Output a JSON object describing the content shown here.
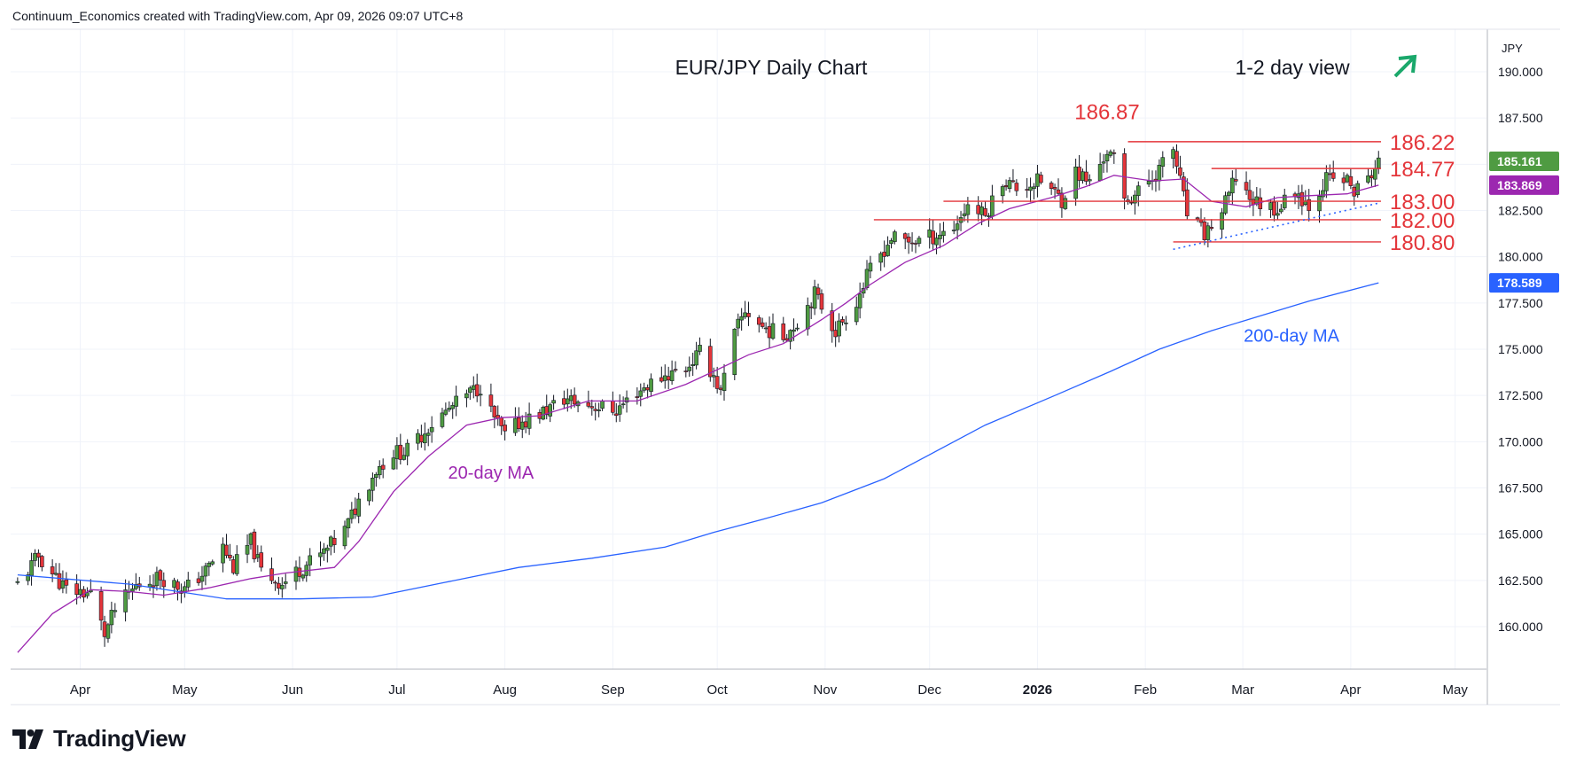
{
  "header": {
    "attribution": "Continuum_Economics created with TradingView.com, Apr 09, 2026 09:07 UTC+8"
  },
  "footer": {
    "brand": "TradingView",
    "logo_icon": "tradingview-logo-icon"
  },
  "colors": {
    "up": "#4f9b42",
    "down": "#e4353a",
    "ma20": "#9c27b0",
    "ma200": "#2962ff",
    "level": "#e4353a",
    "arrow": "#1aa86b",
    "last_price": "#4f9b42",
    "trend": "#2962ff"
  },
  "chart_data": {
    "type": "candlestick",
    "title": "EUR/JPY Daily Chart",
    "view_label": "1-2 day view",
    "view_icon": "arrow-up-right-icon",
    "currency": "JPY",
    "ylim": [
      157.7,
      192.3
    ],
    "yticks": [
      "160.000",
      "162.500",
      "165.000",
      "167.500",
      "170.000",
      "172.500",
      "175.000",
      "177.500",
      "180.000",
      "182.500",
      "185.000",
      "187.500",
      "190.000"
    ],
    "xticks": [
      {
        "label": "Apr",
        "date": "2025-04-01"
      },
      {
        "label": "May",
        "date": "2025-05-01"
      },
      {
        "label": "Jun",
        "date": "2025-06-01"
      },
      {
        "label": "Jul",
        "date": "2025-07-01"
      },
      {
        "label": "Aug",
        "date": "2025-08-01"
      },
      {
        "label": "Sep",
        "date": "2025-09-01"
      },
      {
        "label": "Oct",
        "date": "2025-10-01"
      },
      {
        "label": "Nov",
        "date": "2025-11-01"
      },
      {
        "label": "Dec",
        "date": "2025-12-01"
      },
      {
        "label": "2026",
        "date": "2026-01-01"
      },
      {
        "label": "Feb",
        "date": "2026-02-01"
      },
      {
        "label": "Mar",
        "date": "2026-03-01"
      },
      {
        "label": "Apr",
        "date": "2026-04-01"
      },
      {
        "label": "May",
        "date": "2026-05-01"
      }
    ],
    "first_date": "2025-03-14",
    "last_date": "2026-04-09",
    "axis_end_date": "2026-05-10",
    "price_path": [
      [
        "2025-03-14",
        162.3
      ],
      [
        "2025-03-20",
        163.8
      ],
      [
        "2025-03-28",
        162.0
      ],
      [
        "2025-04-04",
        161.8
      ],
      [
        "2025-04-08",
        159.6
      ],
      [
        "2025-04-11",
        160.9
      ],
      [
        "2025-04-17",
        162.2
      ],
      [
        "2025-04-24",
        162.7
      ],
      [
        "2025-05-01",
        162.0
      ],
      [
        "2025-05-07",
        163.0
      ],
      [
        "2025-05-12",
        164.3
      ],
      [
        "2025-05-15",
        163.2
      ],
      [
        "2025-05-20",
        164.6
      ],
      [
        "2025-05-23",
        163.0
      ],
      [
        "2025-05-29",
        162.3
      ],
      [
        "2025-06-03",
        163.1
      ],
      [
        "2025-06-10",
        164.0
      ],
      [
        "2025-06-16",
        165.2
      ],
      [
        "2025-06-20",
        166.8
      ],
      [
        "2025-06-25",
        168.5
      ],
      [
        "2025-06-30",
        169.4
      ],
      [
        "2025-07-04",
        169.5
      ],
      [
        "2025-07-10",
        170.8
      ],
      [
        "2025-07-15",
        171.6
      ],
      [
        "2025-07-21",
        172.5
      ],
      [
        "2025-07-25",
        173.0
      ],
      [
        "2025-07-28",
        171.6
      ],
      [
        "2025-08-01",
        170.3
      ],
      [
        "2025-08-05",
        171.0
      ],
      [
        "2025-08-12",
        171.6
      ],
      [
        "2025-08-18",
        172.3
      ],
      [
        "2025-08-25",
        172.0
      ],
      [
        "2025-09-02",
        171.7
      ],
      [
        "2025-09-08",
        172.7
      ],
      [
        "2025-09-15",
        173.5
      ],
      [
        "2025-09-22",
        174.0
      ],
      [
        "2025-09-26",
        174.8
      ],
      [
        "2025-09-30",
        173.6
      ],
      [
        "2025-10-02",
        172.6
      ],
      [
        "2025-10-06",
        175.8
      ],
      [
        "2025-10-09",
        177.1
      ],
      [
        "2025-10-14",
        176.2
      ],
      [
        "2025-10-20",
        175.7
      ],
      [
        "2025-10-24",
        176.5
      ],
      [
        "2025-10-29",
        178.0
      ],
      [
        "2025-11-04",
        176.0
      ],
      [
        "2025-11-10",
        177.6
      ],
      [
        "2025-11-14",
        179.3
      ],
      [
        "2025-11-20",
        181.0
      ],
      [
        "2025-11-25",
        180.8
      ],
      [
        "2025-12-02",
        181.1
      ],
      [
        "2025-12-08",
        181.6
      ],
      [
        "2025-12-12",
        182.8
      ],
      [
        "2025-12-17",
        182.2
      ],
      [
        "2025-12-22",
        184.2
      ],
      [
        "2025-12-26",
        183.7
      ],
      [
        "2026-01-02",
        184.1
      ],
      [
        "2026-01-08",
        183.1
      ],
      [
        "2026-01-12",
        184.6
      ],
      [
        "2026-01-16",
        184.0
      ],
      [
        "2026-01-21",
        185.7
      ],
      [
        "2026-01-23",
        185.2
      ],
      [
        "2026-01-26",
        183.0
      ],
      [
        "2026-01-30",
        183.5
      ],
      [
        "2026-02-04",
        184.5
      ],
      [
        "2026-02-09",
        185.8
      ],
      [
        "2026-02-13",
        182.3
      ],
      [
        "2026-02-18",
        181.2
      ],
      [
        "2026-02-23",
        182.4
      ],
      [
        "2026-02-27",
        184.3
      ],
      [
        "2026-03-04",
        183.0
      ],
      [
        "2026-03-11",
        182.6
      ],
      [
        "2026-03-16",
        183.6
      ],
      [
        "2026-03-20",
        182.8
      ],
      [
        "2026-03-25",
        184.2
      ],
      [
        "2026-03-31",
        184.1
      ],
      [
        "2026-04-02",
        183.5
      ],
      [
        "2026-04-06",
        184.2
      ],
      [
        "2026-04-09",
        185.16
      ]
    ],
    "ma20": [
      [
        "2025-03-14",
        158.6
      ],
      [
        "2025-03-24",
        160.7
      ],
      [
        "2025-04-04",
        162.0
      ],
      [
        "2025-04-15",
        161.9
      ],
      [
        "2025-04-25",
        161.7
      ],
      [
        "2025-05-08",
        162.1
      ],
      [
        "2025-05-20",
        162.6
      ],
      [
        "2025-05-30",
        162.9
      ],
      [
        "2025-06-13",
        163.2
      ],
      [
        "2025-06-20",
        164.6
      ],
      [
        "2025-06-30",
        167.3
      ],
      [
        "2025-07-10",
        169.2
      ],
      [
        "2025-07-21",
        170.9
      ],
      [
        "2025-07-31",
        171.3
      ],
      [
        "2025-08-11",
        171.4
      ],
      [
        "2025-08-25",
        172.2
      ],
      [
        "2025-09-08",
        172.2
      ],
      [
        "2025-09-22",
        173.1
      ],
      [
        "2025-09-30",
        173.8
      ],
      [
        "2025-10-10",
        174.7
      ],
      [
        "2025-10-20",
        175.3
      ],
      [
        "2025-10-31",
        176.6
      ],
      [
        "2025-11-07",
        177.5
      ],
      [
        "2025-11-14",
        178.5
      ],
      [
        "2025-11-24",
        179.7
      ],
      [
        "2025-12-05",
        180.6
      ],
      [
        "2025-12-15",
        181.8
      ],
      [
        "2025-12-24",
        182.6
      ],
      [
        "2026-01-05",
        183.2
      ],
      [
        "2026-01-15",
        183.8
      ],
      [
        "2026-01-23",
        184.4
      ],
      [
        "2026-02-03",
        184.1
      ],
      [
        "2026-02-12",
        184.2
      ],
      [
        "2026-02-20",
        183.0
      ],
      [
        "2026-03-02",
        182.7
      ],
      [
        "2026-03-11",
        183.2
      ],
      [
        "2026-03-20",
        183.3
      ],
      [
        "2026-03-31",
        183.4
      ],
      [
        "2026-04-09",
        183.87
      ]
    ],
    "ma200": [
      [
        "2025-03-14",
        162.8
      ],
      [
        "2025-04-15",
        162.3
      ],
      [
        "2025-05-13",
        161.5
      ],
      [
        "2025-06-03",
        161.5
      ],
      [
        "2025-06-24",
        161.6
      ],
      [
        "2025-07-15",
        162.4
      ],
      [
        "2025-08-05",
        163.2
      ],
      [
        "2025-08-26",
        163.7
      ],
      [
        "2025-09-16",
        164.3
      ],
      [
        "2025-09-30",
        165.1
      ],
      [
        "2025-10-14",
        165.8
      ],
      [
        "2025-10-31",
        166.7
      ],
      [
        "2025-11-18",
        168.0
      ],
      [
        "2025-12-02",
        169.4
      ],
      [
        "2025-12-17",
        170.9
      ],
      [
        "2026-01-06",
        172.5
      ],
      [
        "2026-01-22",
        173.8
      ],
      [
        "2026-02-05",
        175.0
      ],
      [
        "2026-02-20",
        176.0
      ],
      [
        "2026-03-06",
        176.8
      ],
      [
        "2026-03-20",
        177.6
      ],
      [
        "2026-04-09",
        178.59
      ]
    ],
    "levels": [
      {
        "value": 186.22,
        "label": "186.22",
        "from": "2026-01-27"
      },
      {
        "value": 184.77,
        "label": "184.77",
        "from": "2026-02-20"
      },
      {
        "value": 183.0,
        "label": "183.00",
        "from": "2025-12-05"
      },
      {
        "value": 182.0,
        "label": "182.00",
        "from": "2025-11-15"
      },
      {
        "value": 180.8,
        "label": "180.80",
        "from": "2026-02-09"
      }
    ],
    "high_annotation": {
      "label": "186.87",
      "value": 186.87,
      "date": "2026-01-21"
    },
    "trendline": {
      "from": [
        "2026-02-09",
        180.4
      ],
      "to": [
        "2026-04-09",
        182.9
      ]
    },
    "annotations": [
      {
        "text": "20-day MA",
        "color": "ma20",
        "date": "2025-07-28",
        "value": 168.0
      },
      {
        "text": "200-day MA",
        "color": "ma200",
        "date": "2026-03-15",
        "value": 175.4
      }
    ],
    "price_tags": [
      {
        "label": "185.161",
        "value": 185.16,
        "color": "#4f9b42"
      },
      {
        "label": "183.869",
        "value": 183.87,
        "color": "#9c27b0"
      },
      {
        "label": "178.589",
        "value": 178.59,
        "color": "#2962ff"
      }
    ]
  }
}
